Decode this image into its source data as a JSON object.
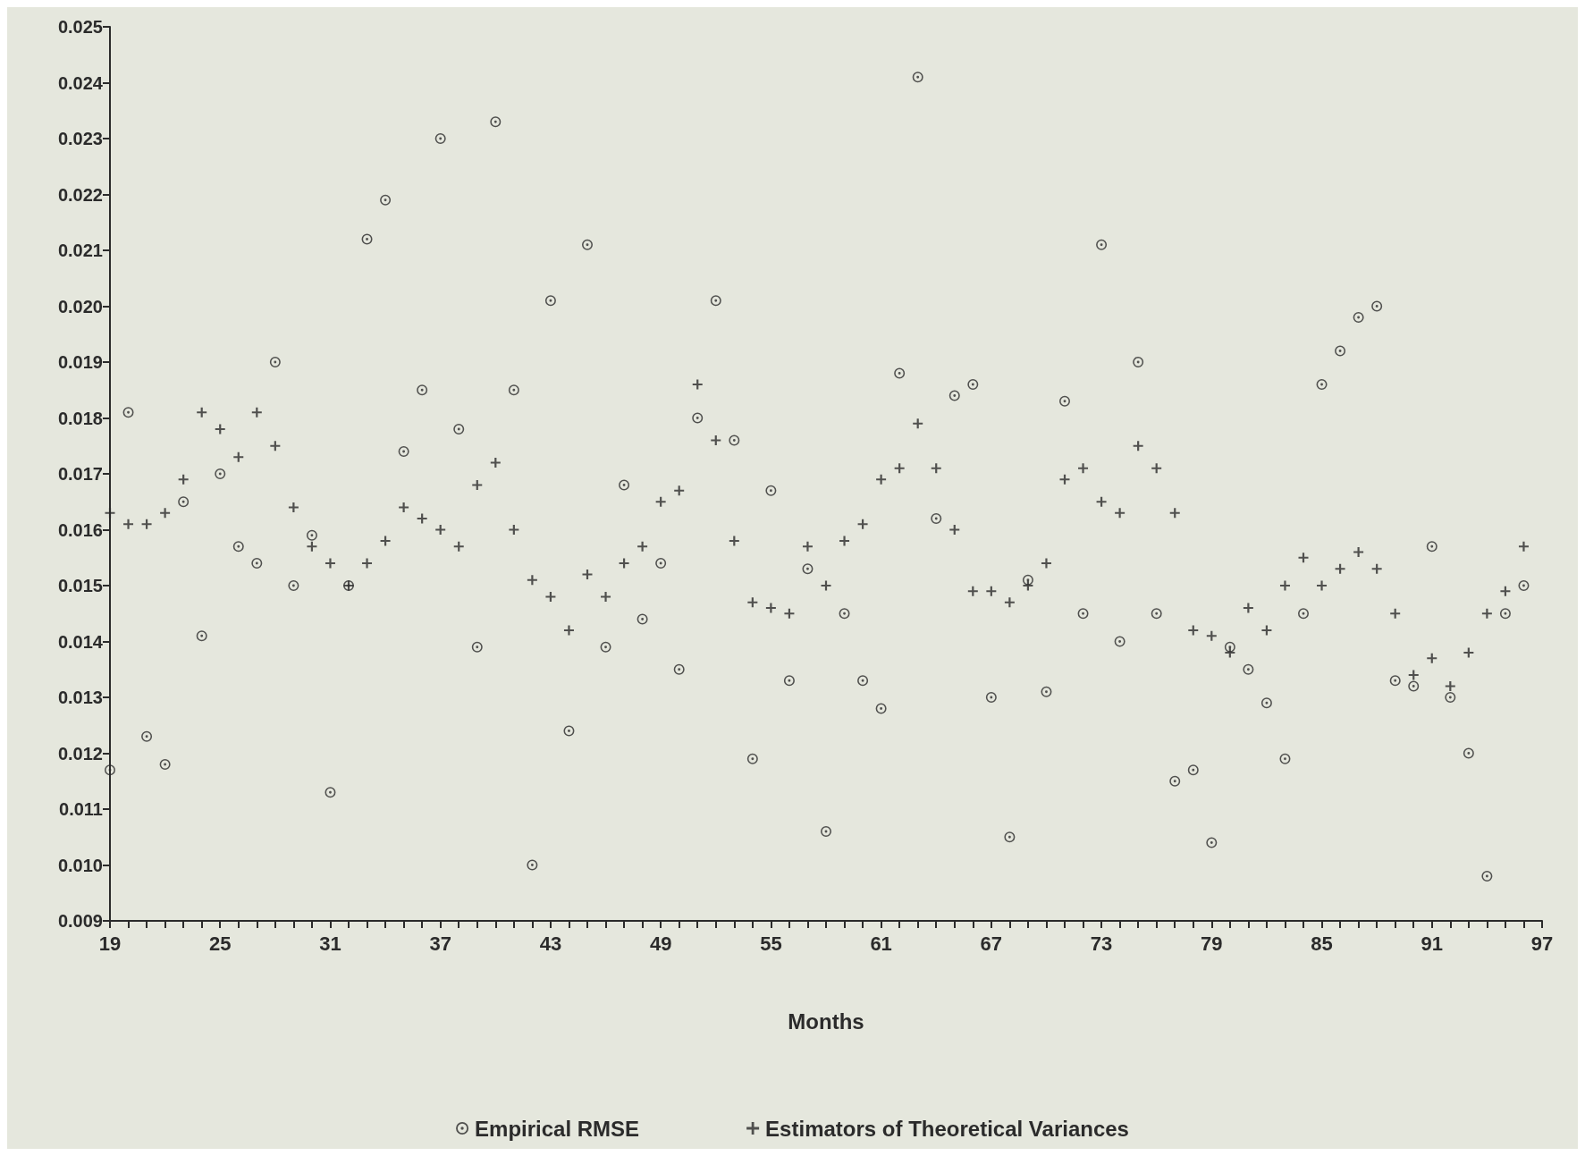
{
  "chart_data": {
    "type": "scatter",
    "xlabel": "Months",
    "x": [
      19,
      20,
      21,
      22,
      23,
      24,
      25,
      26,
      27,
      28,
      29,
      30,
      31,
      32,
      33,
      34,
      35,
      36,
      37,
      38,
      39,
      40,
      41,
      42,
      43,
      44,
      45,
      46,
      47,
      48,
      49,
      50,
      51,
      52,
      53,
      54,
      55,
      56,
      57,
      58,
      59,
      60,
      61,
      62,
      63,
      64,
      65,
      66,
      67,
      68,
      69,
      70,
      71,
      72,
      73,
      74,
      75,
      76,
      77,
      78,
      79,
      80,
      81,
      82,
      83,
      84,
      85,
      86,
      87,
      88,
      89,
      90,
      91,
      92,
      93,
      94,
      95,
      96
    ],
    "series": [
      {
        "name": "Empirical RMSE",
        "color": "#2b2b2b",
        "marker": "circle",
        "values": [
          0.0117,
          0.0181,
          0.0123,
          0.0118,
          0.0165,
          0.0141,
          0.017,
          0.0157,
          0.0154,
          0.019,
          0.015,
          0.0159,
          0.0113,
          0.015,
          0.0212,
          0.0219,
          0.0174,
          0.0185,
          0.023,
          0.0178,
          0.0139,
          0.0233,
          0.0185,
          0.01,
          0.0201,
          0.0124,
          0.0211,
          0.0139,
          0.0168,
          0.0144,
          0.0154,
          0.0135,
          0.018,
          0.0201,
          0.0176,
          0.0119,
          0.0167,
          0.0133,
          0.0153,
          0.0106,
          0.0145,
          0.0133,
          0.0128,
          0.0188,
          0.0241,
          0.0162,
          0.0184,
          0.0186,
          0.013,
          0.0105,
          0.0151,
          0.0131,
          0.0183,
          0.0145,
          0.0211,
          0.014,
          0.019,
          0.0145,
          0.0115,
          0.0117,
          0.0104,
          0.0139,
          0.0135,
          0.0129,
          0.0119,
          0.0145,
          0.0186,
          0.0192,
          0.0198,
          0.02,
          0.0133,
          0.0132,
          0.0157,
          0.013,
          0.012,
          0.0098,
          0.0145,
          0.015
        ]
      },
      {
        "name": "Estimators of Theoretical Variances",
        "color": "#2b2b2b",
        "marker": "cross",
        "values": [
          0.0163,
          0.0161,
          0.0161,
          0.0163,
          0.0169,
          0.0181,
          0.0178,
          0.0173,
          0.0181,
          0.0175,
          0.0164,
          0.0157,
          0.0154,
          0.015,
          0.0154,
          0.0158,
          0.0164,
          0.0162,
          0.016,
          0.0157,
          0.0168,
          0.0172,
          0.016,
          0.0151,
          0.0148,
          0.0142,
          0.0152,
          0.0148,
          0.0154,
          0.0157,
          0.0165,
          0.0167,
          0.0186,
          0.0176,
          0.0158,
          0.0147,
          0.0146,
          0.0145,
          0.0157,
          0.015,
          0.0158,
          0.0161,
          0.0169,
          0.0171,
          0.0179,
          0.0171,
          0.016,
          0.0149,
          0.0149,
          0.0147,
          0.015,
          0.0154,
          0.0169,
          0.0171,
          0.0165,
          0.0163,
          0.0175,
          0.0171,
          0.0163,
          0.0142,
          0.0141,
          0.0138,
          0.0146,
          0.0142,
          0.015,
          0.0155,
          0.015,
          0.0153,
          0.0156,
          0.0153,
          0.0145,
          0.0134,
          0.0137,
          0.0132,
          0.0138,
          0.0145,
          0.0149,
          0.0157
        ]
      }
    ],
    "xlim": [
      19,
      97
    ],
    "xticks": [
      19,
      {
        "value": 20,
        "label": null
      },
      {
        "value": 21,
        "label": null
      },
      {
        "value": 22,
        "label": null
      },
      {
        "value": 23,
        "label": null
      },
      {
        "value": 24,
        "label": null
      },
      25,
      {
        "value": 26,
        "label": null
      },
      {
        "value": 27,
        "label": null
      },
      {
        "value": 28,
        "label": null
      },
      {
        "value": 29,
        "label": null
      },
      {
        "value": 30,
        "label": null
      },
      31,
      {
        "value": 32,
        "label": null
      },
      {
        "value": 33,
        "label": null
      },
      {
        "value": 34,
        "label": null
      },
      {
        "value": 35,
        "label": null
      },
      {
        "value": 36,
        "label": null
      },
      37,
      {
        "value": 38,
        "label": null
      },
      {
        "value": 39,
        "label": null
      },
      {
        "value": 40,
        "label": null
      },
      {
        "value": 41,
        "label": null
      },
      {
        "value": 42,
        "label": null
      },
      43,
      {
        "value": 44,
        "label": null
      },
      {
        "value": 45,
        "label": null
      },
      {
        "value": 46,
        "label": null
      },
      {
        "value": 47,
        "label": null
      },
      {
        "value": 48,
        "label": null
      },
      49,
      {
        "value": 50,
        "label": null
      },
      {
        "value": 51,
        "label": null
      },
      {
        "value": 52,
        "label": null
      },
      {
        "value": 53,
        "label": null
      },
      {
        "value": 54,
        "label": null
      },
      55,
      {
        "value": 56,
        "label": null
      },
      {
        "value": 57,
        "label": null
      },
      {
        "value": 58,
        "label": null
      },
      {
        "value": 59,
        "label": null
      },
      {
        "value": 60,
        "label": null
      },
      61,
      {
        "value": 62,
        "label": null
      },
      {
        "value": 63,
        "label": null
      },
      {
        "value": 64,
        "label": null
      },
      {
        "value": 65,
        "label": null
      },
      {
        "value": 66,
        "label": null
      },
      67,
      {
        "value": 68,
        "label": null
      },
      {
        "value": 69,
        "label": null
      },
      {
        "value": 70,
        "label": null
      },
      {
        "value": 71,
        "label": null
      },
      {
        "value": 72,
        "label": null
      },
      73,
      {
        "value": 74,
        "label": null
      },
      {
        "value": 75,
        "label": null
      },
      {
        "value": 76,
        "label": null
      },
      {
        "value": 77,
        "label": null
      },
      {
        "value": 78,
        "label": null
      },
      79,
      {
        "value": 80,
        "label": null
      },
      {
        "value": 81,
        "label": null
      },
      {
        "value": 82,
        "label": null
      },
      {
        "value": 83,
        "label": null
      },
      {
        "value": 84,
        "label": null
      },
      85,
      {
        "value": 86,
        "label": null
      },
      {
        "value": 87,
        "label": null
      },
      {
        "value": 88,
        "label": null
      },
      {
        "value": 89,
        "label": null
      },
      {
        "value": 90,
        "label": null
      },
      91,
      {
        "value": 92,
        "label": null
      },
      {
        "value": 93,
        "label": null
      },
      {
        "value": 94,
        "label": null
      },
      {
        "value": 95,
        "label": null
      },
      {
        "value": 96,
        "label": null
      },
      97
    ],
    "ylim": [
      0.009,
      0.025
    ],
    "yticks": [
      0.009,
      {
        "value": 0.01,
        "label": "0.010"
      },
      0.011,
      0.012,
      0.013,
      0.014,
      0.015,
      0.016,
      0.017,
      0.018,
      0.019,
      {
        "value": 0.02,
        "label": "0.020"
      },
      0.021,
      0.022,
      0.023,
      0.024,
      0.025
    ],
    "grid": false,
    "legend": "bottom"
  }
}
